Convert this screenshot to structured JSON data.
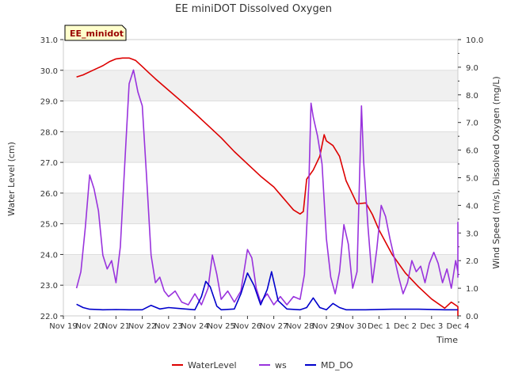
{
  "chart_data": {
    "type": "line",
    "title": "EE miniDOT Dissolved Oxygen",
    "site_label": "EE_minidot",
    "xlabel": "Time",
    "ylabel_left": "Water Level (cm)",
    "ylabel_right": "Wind Speed (m/s), Dissolved Oxygen (mg/L)",
    "xlim": [
      "2023-11-19",
      "2023-12-04"
    ],
    "ylim_left": [
      22.0,
      31.0
    ],
    "ylim_right": [
      0.0,
      10.0
    ],
    "x_ticks": [
      "Nov 19",
      "Nov 20",
      "Nov 21",
      "Nov 22",
      "Nov 23",
      "Nov 24",
      "Nov 25",
      "Nov 26",
      "Nov 27",
      "Nov 28",
      "Nov 29",
      "Nov 30",
      "Dec 1",
      "Dec 2",
      "Dec 3",
      "Dec 4"
    ],
    "y_ticks_left": [
      "22.0",
      "23.0",
      "24.0",
      "25.0",
      "26.0",
      "27.0",
      "28.0",
      "29.0",
      "30.0",
      "31.0"
    ],
    "y_ticks_right": [
      "0.0",
      "1.0",
      "2.0",
      "3.0",
      "4.0",
      "5.0",
      "6.0",
      "7.0",
      "8.0",
      "9.0",
      "10.0"
    ],
    "grid": true,
    "banded_background": true,
    "legend_position": "bottom-center",
    "series": [
      {
        "name": "WaterLevel",
        "axis": "left",
        "color": "#dd0000",
        "points": [
          [
            "2023-11-19 12:00",
            29.78
          ],
          [
            "2023-11-19 18:00",
            29.85
          ],
          [
            "2023-11-20 00:00",
            29.95
          ],
          [
            "2023-11-20 06:00",
            30.05
          ],
          [
            "2023-11-20 12:00",
            30.15
          ],
          [
            "2023-11-20 18:00",
            30.28
          ],
          [
            "2023-11-21 00:00",
            30.37
          ],
          [
            "2023-11-21 06:00",
            30.4
          ],
          [
            "2023-11-21 12:00",
            30.4
          ],
          [
            "2023-11-21 18:00",
            30.32
          ],
          [
            "2023-11-22 00:00",
            30.12
          ],
          [
            "2023-11-22 06:00",
            29.92
          ],
          [
            "2023-11-22 12:00",
            29.72
          ],
          [
            "2023-11-23 00:00",
            29.35
          ],
          [
            "2023-11-23 12:00",
            28.98
          ],
          [
            "2023-11-24 00:00",
            28.6
          ],
          [
            "2023-11-24 12:00",
            28.2
          ],
          [
            "2023-11-25 00:00",
            27.8
          ],
          [
            "2023-11-25 12:00",
            27.35
          ],
          [
            "2023-11-26 00:00",
            26.95
          ],
          [
            "2023-11-26 12:00",
            26.55
          ],
          [
            "2023-11-27 00:00",
            26.2
          ],
          [
            "2023-11-27 06:00",
            25.95
          ],
          [
            "2023-11-27 12:00",
            25.7
          ],
          [
            "2023-11-27 18:00",
            25.45
          ],
          [
            "2023-11-28 00:00",
            25.32
          ],
          [
            "2023-11-28 03:00",
            25.4
          ],
          [
            "2023-11-28 06:00",
            26.45
          ],
          [
            "2023-11-28 12:00",
            26.75
          ],
          [
            "2023-11-28 18:00",
            27.2
          ],
          [
            "2023-11-28 22:00",
            27.9
          ],
          [
            "2023-11-29 00:00",
            27.7
          ],
          [
            "2023-11-29 06:00",
            27.55
          ],
          [
            "2023-11-29 12:00",
            27.2
          ],
          [
            "2023-11-29 18:00",
            26.4
          ],
          [
            "2023-11-30 00:00",
            25.95
          ],
          [
            "2023-11-30 04:00",
            25.65
          ],
          [
            "2023-11-30 12:00",
            25.68
          ],
          [
            "2023-11-30 18:00",
            25.3
          ],
          [
            "2023-12-01 00:00",
            24.8
          ],
          [
            "2023-12-01 12:00",
            24.0
          ],
          [
            "2023-12-02 00:00",
            23.4
          ],
          [
            "2023-12-02 12:00",
            22.95
          ],
          [
            "2023-12-03 00:00",
            22.55
          ],
          [
            "2023-12-03 12:00",
            22.25
          ],
          [
            "2023-12-03 18:00",
            22.45
          ],
          [
            "2023-12-04 00:00",
            22.3
          ],
          [
            "2023-12-04 12:00",
            22.25
          ],
          [
            "2023-12-05 00:00",
            22.22
          ],
          [
            "2023-12-05 04:00",
            22.3
          ],
          [
            "2023-12-05 10:00",
            22.15
          ],
          [
            "2023-12-05 16:00",
            22.0
          ]
        ]
      },
      {
        "name": "ws",
        "axis": "right",
        "color": "#9933dd",
        "points": [
          [
            "2023-11-19 12:00",
            1.0
          ],
          [
            "2023-11-19 16:00",
            1.6
          ],
          [
            "2023-11-19 20:00",
            3.2
          ],
          [
            "2023-11-20 00:00",
            5.1
          ],
          [
            "2023-11-20 04:00",
            4.6
          ],
          [
            "2023-11-20 08:00",
            3.8
          ],
          [
            "2023-11-20 12:00",
            2.2
          ],
          [
            "2023-11-20 16:00",
            1.7
          ],
          [
            "2023-11-20 20:00",
            2.0
          ],
          [
            "2023-11-21 00:00",
            1.2
          ],
          [
            "2023-11-21 04:00",
            2.5
          ],
          [
            "2023-11-21 08:00",
            5.5
          ],
          [
            "2023-11-21 12:00",
            8.4
          ],
          [
            "2023-11-21 16:00",
            8.9
          ],
          [
            "2023-11-21 20:00",
            8.1
          ],
          [
            "2023-11-22 00:00",
            7.6
          ],
          [
            "2023-11-22 04:00",
            5.0
          ],
          [
            "2023-11-22 08:00",
            2.2
          ],
          [
            "2023-11-22 12:00",
            1.2
          ],
          [
            "2023-11-22 16:00",
            1.4
          ],
          [
            "2023-11-22 20:00",
            0.9
          ],
          [
            "2023-11-23 00:00",
            0.7
          ],
          [
            "2023-11-23 06:00",
            0.9
          ],
          [
            "2023-11-23 12:00",
            0.5
          ],
          [
            "2023-11-23 18:00",
            0.4
          ],
          [
            "2023-11-24 00:00",
            0.8
          ],
          [
            "2023-11-24 06:00",
            0.4
          ],
          [
            "2023-11-24 12:00",
            1.0
          ],
          [
            "2023-11-24 16:00",
            2.2
          ],
          [
            "2023-11-24 20:00",
            1.5
          ],
          [
            "2023-11-25 00:00",
            0.6
          ],
          [
            "2023-11-25 06:00",
            0.9
          ],
          [
            "2023-11-25 12:00",
            0.5
          ],
          [
            "2023-11-25 18:00",
            0.9
          ],
          [
            "2023-11-26 00:00",
            2.4
          ],
          [
            "2023-11-26 04:00",
            2.1
          ],
          [
            "2023-11-26 08:00",
            1.0
          ],
          [
            "2023-11-26 12:00",
            0.5
          ],
          [
            "2023-11-26 18:00",
            0.8
          ],
          [
            "2023-11-27 00:00",
            0.4
          ],
          [
            "2023-11-27 06:00",
            0.7
          ],
          [
            "2023-11-27 12:00",
            0.4
          ],
          [
            "2023-11-27 18:00",
            0.7
          ],
          [
            "2023-11-28 00:00",
            0.6
          ],
          [
            "2023-11-28 04:00",
            1.5
          ],
          [
            "2023-11-28 08:00",
            4.8
          ],
          [
            "2023-11-28 10:00",
            7.7
          ],
          [
            "2023-11-28 12:00",
            7.2
          ],
          [
            "2023-11-28 16:00",
            6.5
          ],
          [
            "2023-11-28 20:00",
            5.5
          ],
          [
            "2023-11-29 00:00",
            2.8
          ],
          [
            "2023-11-29 04:00",
            1.4
          ],
          [
            "2023-11-29 08:00",
            0.8
          ],
          [
            "2023-11-29 12:00",
            1.6
          ],
          [
            "2023-11-29 16:00",
            3.3
          ],
          [
            "2023-11-29 20:00",
            2.6
          ],
          [
            "2023-11-30 00:00",
            1.0
          ],
          [
            "2023-11-30 04:00",
            1.6
          ],
          [
            "2023-11-30 08:00",
            7.6
          ],
          [
            "2023-11-30 10:00",
            5.6
          ],
          [
            "2023-11-30 14:00",
            3.2
          ],
          [
            "2023-11-30 18:00",
            1.2
          ],
          [
            "2023-11-30 22:00",
            2.4
          ],
          [
            "2023-12-01 02:00",
            4.0
          ],
          [
            "2023-12-01 06:00",
            3.6
          ],
          [
            "2023-12-01 10:00",
            2.8
          ],
          [
            "2023-12-01 14:00",
            2.1
          ],
          [
            "2023-12-01 18:00",
            1.4
          ],
          [
            "2023-12-01 22:00",
            0.8
          ],
          [
            "2023-12-02 02:00",
            1.2
          ],
          [
            "2023-12-02 06:00",
            2.0
          ],
          [
            "2023-12-02 10:00",
            1.6
          ],
          [
            "2023-12-02 14:00",
            1.8
          ],
          [
            "2023-12-02 18:00",
            1.2
          ],
          [
            "2023-12-02 22:00",
            1.9
          ],
          [
            "2023-12-03 02:00",
            2.3
          ],
          [
            "2023-12-03 06:00",
            1.9
          ],
          [
            "2023-12-03 10:00",
            1.2
          ],
          [
            "2023-12-03 14:00",
            1.7
          ],
          [
            "2023-12-03 18:00",
            1.0
          ],
          [
            "2023-12-03 22:00",
            2.0
          ],
          [
            "2023-12-04 02:00",
            1.6
          ],
          [
            "2023-12-04 06:00",
            2.1
          ],
          [
            "2023-12-04 10:00",
            1.4
          ],
          [
            "2023-12-04 14:00",
            1.7
          ],
          [
            "2023-12-04 18:00",
            2.5
          ],
          [
            "2023-12-05 00:00",
            2.2
          ],
          [
            "2023-12-05 06:00",
            2.5
          ],
          [
            "2023-12-05 12:00",
            2.1
          ],
          [
            "2023-12-05 18:00",
            3.4
          ]
        ]
      },
      {
        "name": "MD_DO",
        "axis": "right",
        "color": "#0000cc",
        "points": [
          [
            "2023-11-19 12:00",
            0.42
          ],
          [
            "2023-11-19 18:00",
            0.3
          ],
          [
            "2023-11-20 00:00",
            0.24
          ],
          [
            "2023-11-20 12:00",
            0.22
          ],
          [
            "2023-11-21 00:00",
            0.23
          ],
          [
            "2023-11-21 12:00",
            0.22
          ],
          [
            "2023-11-22 00:00",
            0.22
          ],
          [
            "2023-11-22 08:00",
            0.38
          ],
          [
            "2023-11-22 16:00",
            0.25
          ],
          [
            "2023-11-23 00:00",
            0.3
          ],
          [
            "2023-11-23 12:00",
            0.26
          ],
          [
            "2023-11-24 00:00",
            0.22
          ],
          [
            "2023-11-24 06:00",
            0.7
          ],
          [
            "2023-11-24 10:00",
            1.25
          ],
          [
            "2023-11-24 14:00",
            1.05
          ],
          [
            "2023-11-24 20:00",
            0.35
          ],
          [
            "2023-11-25 00:00",
            0.22
          ],
          [
            "2023-11-25 12:00",
            0.25
          ],
          [
            "2023-11-25 18:00",
            0.8
          ],
          [
            "2023-11-26 00:00",
            1.55
          ],
          [
            "2023-11-26 06:00",
            1.1
          ],
          [
            "2023-11-26 12:00",
            0.4
          ],
          [
            "2023-11-26 18:00",
            0.95
          ],
          [
            "2023-11-26 22:00",
            1.6
          ],
          [
            "2023-11-27 04:00",
            0.55
          ],
          [
            "2023-11-27 12:00",
            0.25
          ],
          [
            "2023-11-28 00:00",
            0.22
          ],
          [
            "2023-11-28 06:00",
            0.3
          ],
          [
            "2023-11-28 12:00",
            0.65
          ],
          [
            "2023-11-28 18:00",
            0.3
          ],
          [
            "2023-11-29 00:00",
            0.22
          ],
          [
            "2023-11-29 06:00",
            0.45
          ],
          [
            "2023-11-29 12:00",
            0.3
          ],
          [
            "2023-11-29 18:00",
            0.22
          ],
          [
            "2023-11-30 12:00",
            0.22
          ],
          [
            "2023-12-01 12:00",
            0.24
          ],
          [
            "2023-12-02 12:00",
            0.24
          ],
          [
            "2023-12-03 12:00",
            0.22
          ],
          [
            "2023-12-04 12:00",
            0.22
          ],
          [
            "2023-12-05 12:00",
            0.22
          ],
          [
            "2023-12-05 18:00",
            0.22
          ]
        ]
      }
    ]
  }
}
